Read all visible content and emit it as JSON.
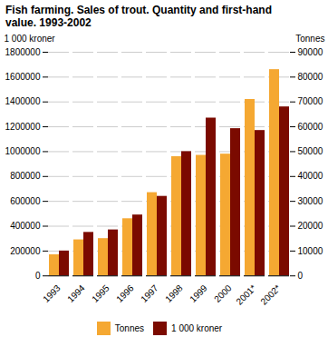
{
  "chart_data": {
    "type": "bar",
    "title": "Fish farming. Sales of trout. Quantity and first-hand\nvalue. 1993-2002",
    "categories": [
      "1993",
      "1994",
      "1995",
      "1996",
      "1997",
      "1998",
      "1999",
      "2000",
      "2001*",
      "2002*"
    ],
    "series": [
      {
        "name": "Tonnes",
        "color": "#F5A832",
        "axis": "y2",
        "values": [
          8500,
          14500,
          15000,
          23000,
          33500,
          48000,
          48500,
          49000,
          71000,
          83000
        ]
      },
      {
        "name": "1 000 kroner",
        "color": "#7B0A00",
        "values": [
          200000,
          350000,
          370000,
          490000,
          640000,
          1000000,
          1270000,
          1185000,
          1170000,
          1360000
        ]
      }
    ],
    "ylabel": "1 000 kroner",
    "y2label": "Tonnes",
    "ylim": [
      0,
      1800000
    ],
    "yticks": [
      0,
      200000,
      400000,
      600000,
      800000,
      1000000,
      1200000,
      1400000,
      1600000,
      1800000
    ],
    "y2lim": [
      0,
      90000
    ],
    "y2ticks": [
      0,
      10000,
      20000,
      30000,
      40000,
      50000,
      60000,
      70000,
      80000,
      90000
    ],
    "grid": true,
    "legend": "bottom"
  }
}
